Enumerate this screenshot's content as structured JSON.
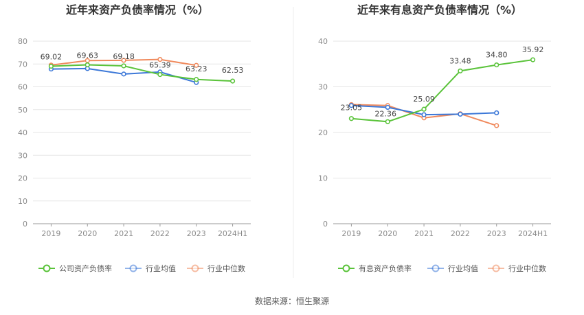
{
  "charts": [
    {
      "title": "近年来资产负债率情况（%）",
      "chart_data": {
        "type": "line",
        "categories": [
          "2019",
          "2020",
          "2021",
          "2022",
          "2023",
          "2024H1"
        ],
        "ylim": [
          0,
          80
        ],
        "yticks": [
          0,
          10,
          20,
          30,
          40,
          50,
          60,
          70,
          80
        ],
        "grid": true,
        "legend_position": "bottom",
        "series": [
          {
            "name": "公司资产负债率",
            "color": "#5ac33a",
            "values": [
              69.02,
              69.63,
              69.18,
              65.39,
              63.23,
              62.53
            ],
            "labels": [
              "69.02",
              "69.63",
              "69.18",
              "65.39",
              "63.23",
              "62.53"
            ]
          },
          {
            "name": "行业均值",
            "color": "#3c78d8",
            "values": [
              67.8,
              68.0,
              65.6,
              66.5,
              61.9,
              null
            ]
          },
          {
            "name": "行业中位数",
            "color": "#f08a5d",
            "values": [
              69.5,
              71.5,
              71.6,
              72.0,
              69.4,
              null
            ]
          }
        ]
      }
    },
    {
      "title": "近年来有息资产负债率情况（%）",
      "chart_data": {
        "type": "line",
        "categories": [
          "2019",
          "2020",
          "2021",
          "2022",
          "2023",
          "2024H1"
        ],
        "ylim": [
          0,
          40
        ],
        "yticks": [
          0,
          10,
          20,
          30,
          40
        ],
        "grid": true,
        "legend_position": "bottom",
        "series": [
          {
            "name": "有息资产负债率",
            "color": "#5ac33a",
            "values": [
              23.05,
              22.36,
              25.09,
              33.48,
              34.8,
              35.92
            ],
            "labels": [
              "23.05",
              "22.36",
              "25.09",
              "33.48",
              "34.80",
              "35.92"
            ]
          },
          {
            "name": "行业均值",
            "color": "#3c78d8",
            "values": [
              25.9,
              25.5,
              23.9,
              24.0,
              24.3,
              null
            ]
          },
          {
            "name": "行业中位数",
            "color": "#f08a5d",
            "values": [
              26.1,
              25.9,
              23.2,
              24.1,
              21.5,
              null
            ]
          }
        ]
      }
    }
  ],
  "source": "数据来源：恒生聚源"
}
